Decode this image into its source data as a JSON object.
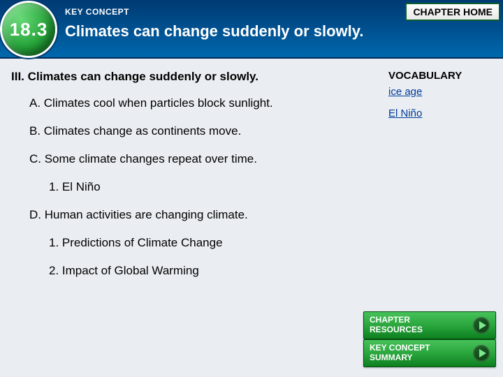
{
  "header": {
    "chapter_home_label": "CHAPTER HOME",
    "section_number": "18.3",
    "kc_label": "KEY CONCEPT",
    "kc_title": "Climates can change suddenly or slowly."
  },
  "outline": {
    "l0": "III. Climates can change suddenly or slowly.",
    "a": "A. Climates cool when particles block sunlight.",
    "b": "B. Climates change as continents move.",
    "c": "C. Some climate changes repeat over time.",
    "c1": "1. El Niño",
    "d": "D. Human activities are changing climate.",
    "d1": "1. Predictions of Climate Change",
    "d2": "2. Impact of Global Warming"
  },
  "vocab": {
    "title": "VOCABULARY",
    "terms": {
      "ice_age": "ice age",
      "el_nino": "El Niño"
    }
  },
  "buttons": {
    "resources": "CHAPTER\nRESOURCES",
    "summary": "KEY CONCEPT\nSUMMARY"
  },
  "colors": {
    "header_gradient_top": "#003a73",
    "header_gradient_bottom": "#0068ad",
    "badge_green": "#27a53a",
    "button_green": "#2aa63d",
    "link_blue": "#003a99",
    "page_bg": "#eaeef2"
  }
}
